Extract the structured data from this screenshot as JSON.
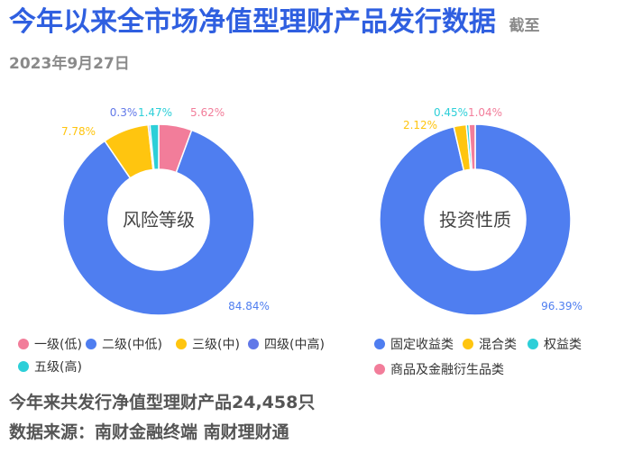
{
  "header": {
    "title": "今年以来全市场净值型理财产品发行数据",
    "subtitle": "截至2023年9月27日"
  },
  "footer": {
    "summary": "今年来共发行净值型理财产品24,458只",
    "source": "数据来源：南财金融终端 南财理财通"
  },
  "chart_data": [
    {
      "type": "pie",
      "variant": "donut",
      "title": "风险等级",
      "categories": [
        "一级(低)",
        "二级(中低)",
        "三级(中)",
        "四级(中高)",
        "五级(高)"
      ],
      "values": [
        5.62,
        84.84,
        7.78,
        0.3,
        1.47
      ],
      "labels": [
        "5.62%",
        "84.84%",
        "7.78%",
        "0.3%",
        "1.47%"
      ],
      "colors": [
        "#f27d9a",
        "#4f7ef0",
        "#ffc50f",
        "#6178e8",
        "#2dcfd8"
      ],
      "legend_position": "bottom"
    },
    {
      "type": "pie",
      "variant": "donut",
      "title": "投资性质",
      "categories": [
        "固定收益类",
        "混合类",
        "权益类",
        "商品及金融衍生品类"
      ],
      "values": [
        96.39,
        2.12,
        0.45,
        1.04
      ],
      "labels": [
        "96.39%",
        "2.12%",
        "0.45%",
        "1.04%"
      ],
      "colors": [
        "#4f7ef0",
        "#ffc50f",
        "#2dcfd8",
        "#f27d9a"
      ],
      "legend_position": "bottom"
    }
  ]
}
